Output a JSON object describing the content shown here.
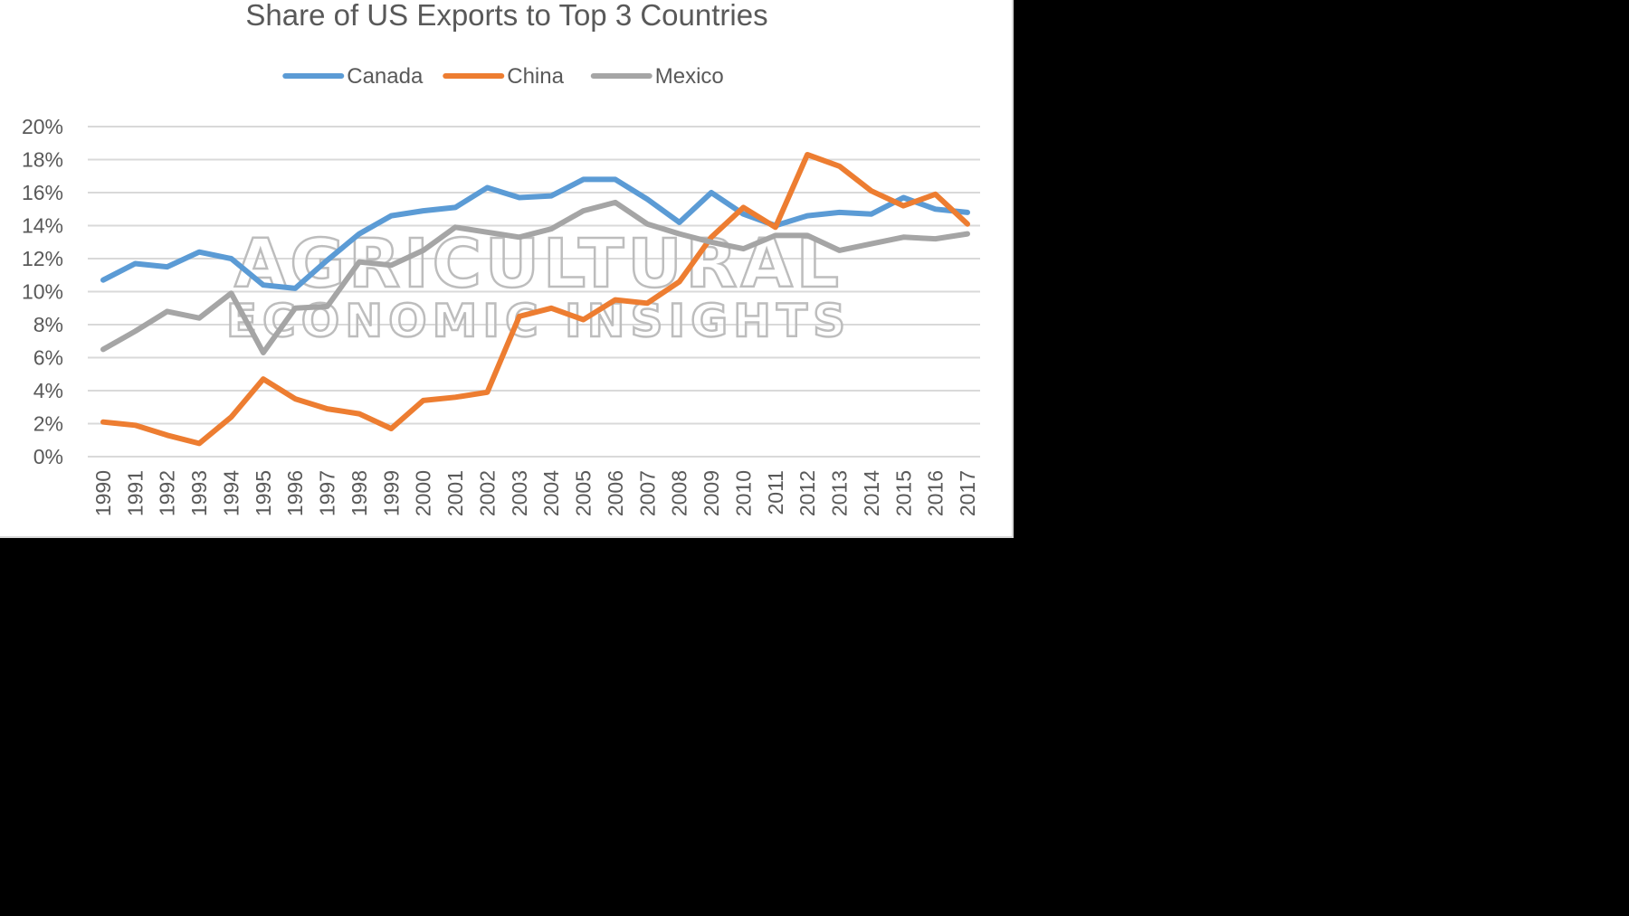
{
  "watermark": {
    "line1": "AGRICULTURAL",
    "line2": "ECONOMIC INSIGHTS"
  },
  "chart_data": {
    "type": "line",
    "title": "Share of US Exports to Top 3 Countries",
    "xlabel": "",
    "ylabel": "",
    "legend_position": "top",
    "grid": true,
    "ylim": [
      0,
      20
    ],
    "y_ticks": [
      "0%",
      "2%",
      "4%",
      "6%",
      "8%",
      "10%",
      "12%",
      "14%",
      "16%",
      "18%",
      "20%"
    ],
    "x": [
      "1990",
      "1991",
      "1992",
      "1993",
      "1994",
      "1995",
      "1996",
      "1997",
      "1998",
      "1999",
      "2000",
      "2001",
      "2002",
      "2003",
      "2004",
      "2005",
      "2006",
      "2007",
      "2008",
      "2009",
      "2010",
      "2011",
      "2012",
      "2013",
      "2014",
      "2015",
      "2016",
      "2017"
    ],
    "series": [
      {
        "name": "Canada",
        "color": "#5b9bd5",
        "values": [
          10.7,
          11.7,
          11.5,
          12.4,
          12.0,
          10.4,
          10.2,
          11.9,
          13.5,
          14.6,
          14.9,
          15.1,
          16.3,
          15.7,
          15.8,
          16.8,
          16.8,
          15.6,
          14.2,
          16.0,
          14.7,
          14.0,
          14.6,
          14.8,
          14.7,
          15.7,
          15.0,
          14.8
        ]
      },
      {
        "name": "China",
        "color": "#ed7d31",
        "values": [
          2.1,
          1.9,
          1.3,
          0.8,
          2.4,
          4.7,
          3.5,
          2.9,
          2.6,
          1.7,
          3.4,
          3.6,
          3.9,
          8.5,
          9.0,
          8.3,
          9.5,
          9.3,
          10.6,
          13.3,
          15.1,
          13.9,
          18.3,
          17.6,
          16.1,
          15.2,
          15.9,
          14.1
        ]
      },
      {
        "name": "Mexico",
        "color": "#a5a5a5",
        "values": [
          6.5,
          7.6,
          8.8,
          8.4,
          9.9,
          6.3,
          9.0,
          9.1,
          11.8,
          11.6,
          12.5,
          13.9,
          13.6,
          13.3,
          13.8,
          14.9,
          15.4,
          14.1,
          13.5,
          13.0,
          12.6,
          13.4,
          13.4,
          12.5,
          12.9,
          13.3,
          13.2,
          13.5
        ]
      }
    ]
  }
}
